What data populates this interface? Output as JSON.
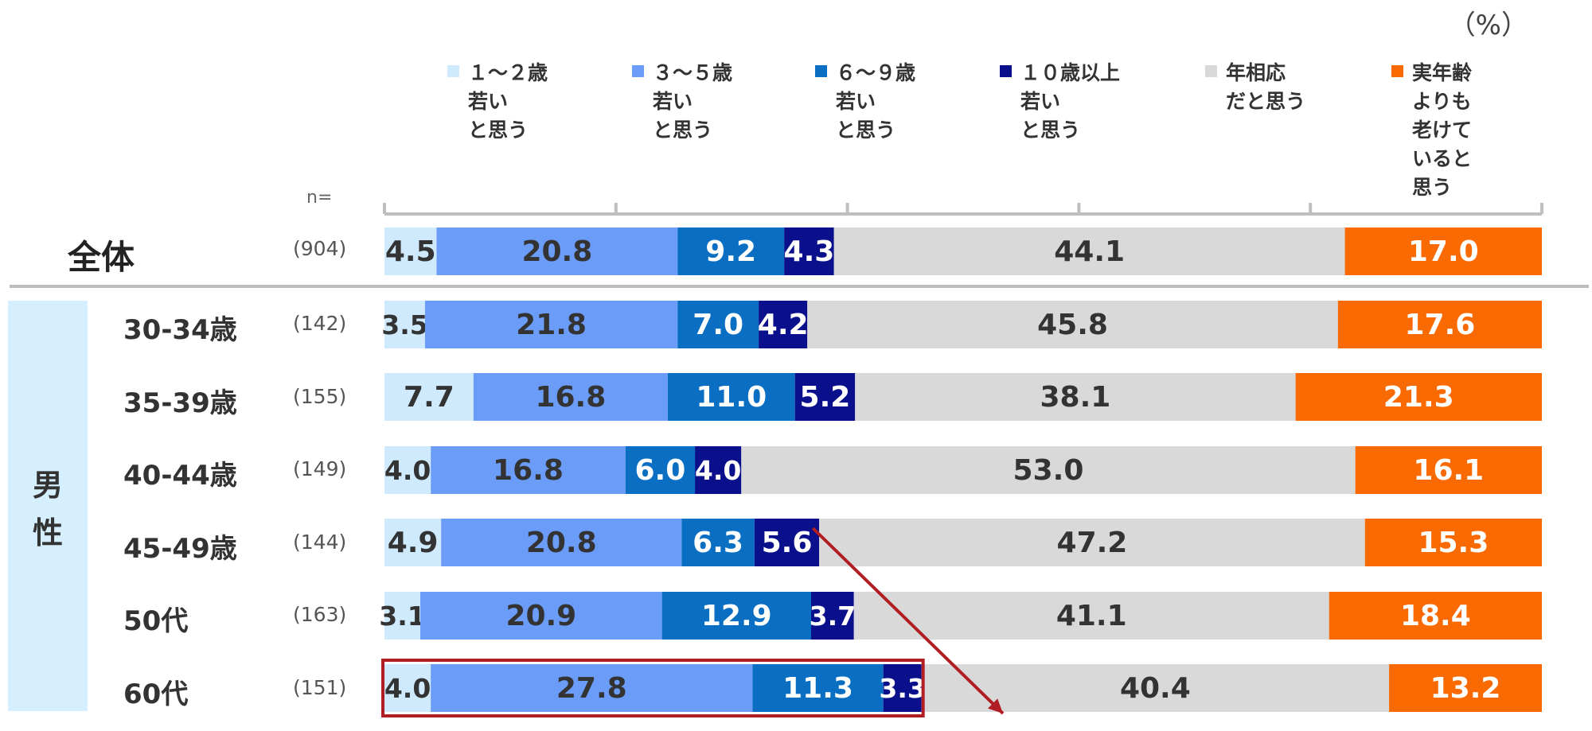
{
  "unit_label": "（%）",
  "n_header": "n=",
  "legend": [
    {
      "label": "１～２歳\n若い\nと思う",
      "color": "#cfeafc"
    },
    {
      "label": "３～５歳\n若い\nと思う",
      "color": "#6b9cf8"
    },
    {
      "label": "６～９歳\n若い\nと思う",
      "color": "#0a6fc2"
    },
    {
      "label": "１０歳以上\n若い\nと思う",
      "color": "#0a0f8c"
    },
    {
      "label": "年相応\nだと思う",
      "color": "#d9d9d9"
    },
    {
      "label": "実年齢\nよりも\n老けて\nいると\n思う",
      "color": "#fa6a02"
    }
  ],
  "group_label": "男\n性",
  "chart_data": {
    "type": "bar",
    "orientation": "horizontal",
    "stacked": true,
    "percent": true,
    "xlim": [
      0,
      100
    ],
    "categories": [
      "全体",
      "30-34歳",
      "35-39歳",
      "40-44歳",
      "45-49歳",
      "50代",
      "60代"
    ],
    "n": [
      "(904)",
      "(142)",
      "(155)",
      "(149)",
      "(144)",
      "(163)",
      "(151)"
    ],
    "series": [
      {
        "name": "１～２歳若いと思う",
        "values": [
          4.5,
          3.5,
          7.7,
          4.0,
          4.9,
          3.1,
          4.0
        ]
      },
      {
        "name": "３～５歳若いと思う",
        "values": [
          20.8,
          21.8,
          16.8,
          16.8,
          20.8,
          20.9,
          27.8
        ]
      },
      {
        "name": "６～９歳若いと思う",
        "values": [
          9.2,
          7.0,
          11.0,
          6.0,
          6.3,
          12.9,
          11.3
        ]
      },
      {
        "name": "１０歳以上若いと思う",
        "values": [
          4.3,
          4.2,
          5.2,
          4.0,
          5.6,
          3.7,
          3.3
        ]
      },
      {
        "name": "年相応だと思う",
        "values": [
          44.1,
          45.8,
          38.1,
          53.0,
          47.2,
          41.1,
          40.4
        ]
      },
      {
        "name": "実年齢よりも老けていると思う",
        "values": [
          17.0,
          17.6,
          21.3,
          16.1,
          15.3,
          18.4,
          13.2
        ]
      }
    ],
    "label_colors": [
      "#333333",
      "#333333",
      "#ffffff",
      "#ffffff",
      "#333333",
      "#ffffff"
    ]
  }
}
